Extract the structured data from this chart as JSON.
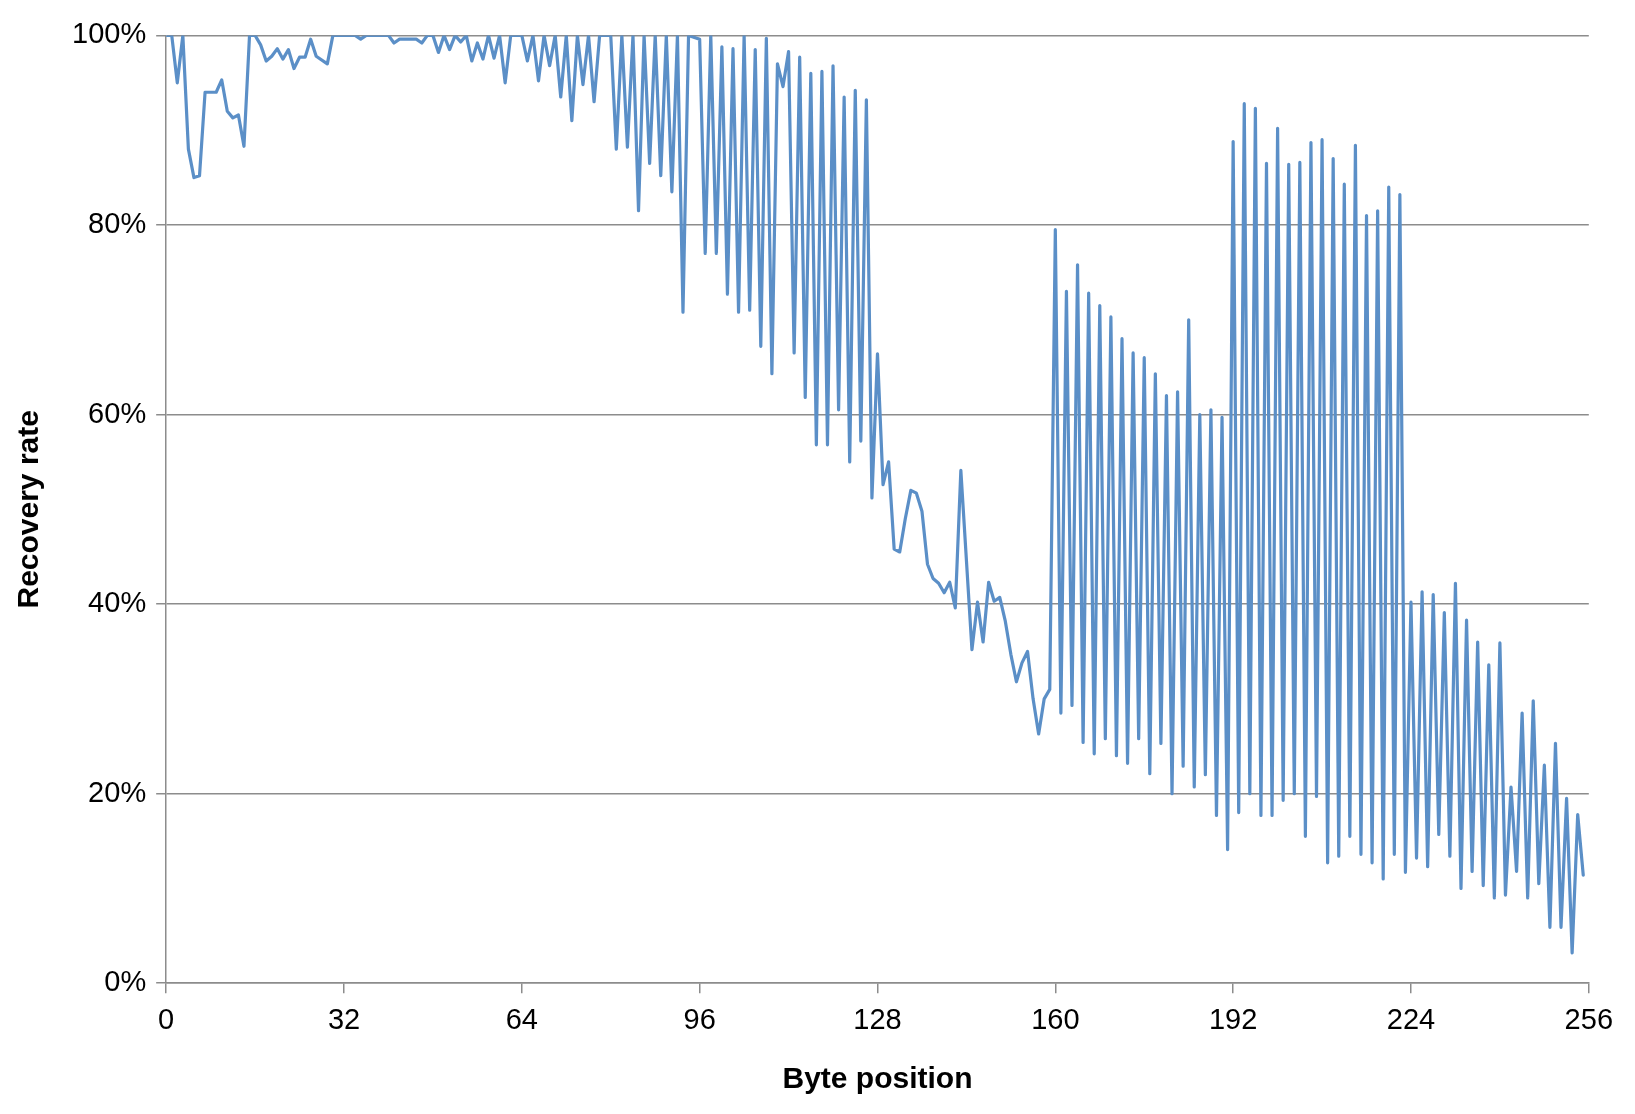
{
  "chart_data": {
    "type": "line",
    "xlabel": "Byte position",
    "ylabel": "Recovery rate",
    "x": [
      0,
      1,
      2,
      3,
      4,
      5,
      6,
      7,
      9,
      10,
      11,
      12,
      13,
      14,
      15,
      16,
      17,
      18,
      19,
      20,
      21,
      22,
      23,
      24,
      25,
      26,
      27,
      29,
      30,
      34,
      35,
      36,
      40,
      41,
      42,
      45,
      46,
      47,
      48,
      49,
      50,
      51,
      52,
      53,
      54,
      55,
      56,
      57,
      58,
      59,
      60,
      61,
      62,
      64,
      65,
      66,
      67,
      68,
      69,
      70,
      71,
      72,
      73,
      74,
      75,
      76,
      77,
      78,
      80,
      81,
      82,
      83,
      84,
      85,
      86,
      87,
      88,
      89,
      90,
      91,
      92,
      93,
      94,
      96,
      97,
      98,
      99,
      100,
      101,
      102,
      103,
      104,
      105,
      106,
      107,
      108,
      109,
      110,
      111,
      112,
      113,
      114,
      115,
      116,
      117,
      118,
      119,
      120,
      121,
      122,
      123,
      124,
      125,
      126,
      127,
      128,
      129,
      130,
      131,
      132,
      133,
      134,
      135,
      136,
      137,
      138,
      139,
      140,
      141,
      142,
      143,
      145,
      146,
      147,
      148,
      149,
      150,
      151,
      152,
      153,
      154,
      155,
      156,
      157,
      158,
      159,
      160,
      161,
      162,
      163,
      164,
      165,
      166,
      167,
      168,
      169,
      170,
      171,
      172,
      173,
      174,
      175,
      176,
      177,
      178,
      179,
      180,
      181,
      182,
      183,
      184,
      185,
      186,
      187,
      188,
      189,
      190,
      191,
      192,
      193,
      194,
      195,
      196,
      197,
      198,
      199,
      200,
      201,
      202,
      203,
      204,
      205,
      206,
      207,
      208,
      209,
      210,
      211,
      212,
      213,
      214,
      215,
      216,
      217,
      218,
      219,
      220,
      221,
      222,
      223,
      224,
      225,
      226,
      227,
      228,
      229,
      230,
      231,
      232,
      233,
      234,
      235,
      236,
      237,
      238,
      239,
      240,
      241,
      242,
      243,
      244,
      245,
      246,
      247,
      248,
      249,
      250,
      251,
      252,
      253,
      254,
      255
    ],
    "series": [
      {
        "color": "#5b8fc7",
        "values": [
          100,
          100,
          95,
          100,
          88,
          85,
          85.2,
          94,
          94,
          95.3,
          92,
          91.3,
          91.6,
          88.3,
          100,
          100,
          99,
          97.3,
          97.8,
          98.6,
          97.5,
          98.5,
          96.5,
          97.7,
          97.7,
          99.6,
          97.8,
          97,
          100,
          100,
          99.6,
          100,
          100,
          99.2,
          99.6,
          99.6,
          99.2,
          100,
          100,
          98.2,
          100,
          98.5,
          100,
          99.3,
          100,
          97.3,
          99.2,
          97.5,
          100,
          97.6,
          100,
          95,
          100,
          100,
          97.3,
          100,
          95.2,
          100,
          96.8,
          100,
          93.5,
          100,
          91,
          100,
          94.8,
          100,
          93,
          100,
          100,
          88,
          100,
          88.2,
          100,
          81.5,
          100,
          86.5,
          100,
          85.2,
          100,
          83.5,
          100,
          70.8,
          100,
          99.6,
          77,
          100,
          77,
          98.8,
          72.7,
          98.6,
          70.8,
          100,
          71,
          98.5,
          67.2,
          99.7,
          64.3,
          97,
          94.6,
          98.3,
          66.5,
          97.7,
          61.8,
          96,
          56.8,
          96.2,
          56.8,
          96.8,
          60.5,
          93.5,
          55,
          94.2,
          57.2,
          93.2,
          51.2,
          66.4,
          52.6,
          55,
          45.8,
          45.5,
          49,
          52,
          51.7,
          49.8,
          44.2,
          42.7,
          42.2,
          41.2,
          42.3,
          39.6,
          54.1,
          35.2,
          40.2,
          36,
          42.3,
          40.3,
          40.7,
          38.2,
          34.7,
          31.8,
          33.8,
          35,
          30,
          26.3,
          30,
          31,
          79.5,
          28.5,
          73,
          29.3,
          75.8,
          25.4,
          72.8,
          24.2,
          71.5,
          25.8,
          70.3,
          24,
          68,
          23.2,
          66.5,
          25.8,
          66,
          22.1,
          64.3,
          25.3,
          62,
          20,
          62.4,
          22.9,
          70,
          20.7,
          60,
          22,
          60.5,
          17.7,
          59.7,
          14.1,
          88.8,
          18,
          92.8,
          20,
          92.3,
          17.7,
          86.5,
          17.7,
          90.2,
          19.3,
          86.4,
          20,
          86.6,
          15.5,
          88.7,
          19.7,
          89,
          12.7,
          87,
          13.4,
          84.3,
          15.5,
          88.4,
          13.6,
          81,
          12.7,
          81.5,
          11,
          84,
          13.6,
          83.2,
          11.7,
          40.2,
          13.2,
          41.3,
          12.3,
          41,
          15.7,
          39.1,
          13.4,
          42.2,
          10,
          38.3,
          11.8,
          36,
          10.3,
          33.6,
          9,
          35.9,
          9.3,
          20.7,
          11.8,
          28.5,
          9,
          29.8,
          10.5,
          23,
          5.9,
          25.3,
          5.9,
          19.5,
          3.2,
          17.8,
          11.4
        ]
      }
    ],
    "xlim": [
      0,
      256
    ],
    "xticks": [
      0,
      32,
      64,
      96,
      128,
      160,
      192,
      224,
      256
    ],
    "ylim": [
      0,
      100
    ],
    "yticks": [
      {
        "value": 0,
        "label": "0%"
      },
      {
        "value": 20,
        "label": "20%"
      },
      {
        "value": 40,
        "label": "40%"
      },
      {
        "value": 60,
        "label": "60%"
      },
      {
        "value": 80,
        "label": "80%"
      },
      {
        "value": 100,
        "label": "100%"
      }
    ],
    "grid": "y",
    "legend": false,
    "marker": "none",
    "line_style": "solid"
  }
}
